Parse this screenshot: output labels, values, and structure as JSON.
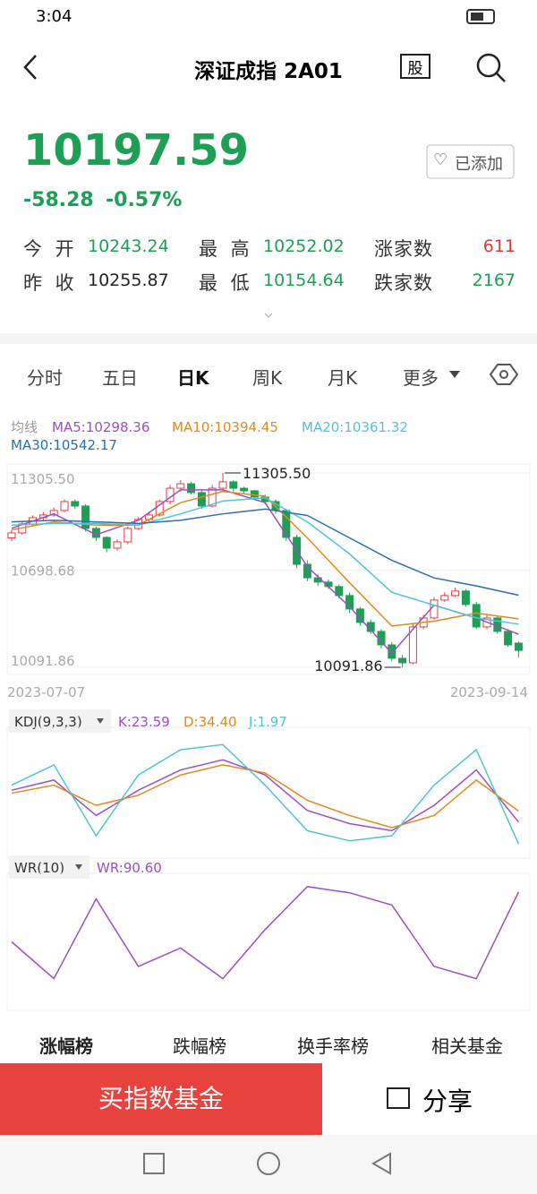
{
  "status": {
    "time": "3:04"
  },
  "nav": {
    "title": "深证成指 2A01",
    "badge": "股"
  },
  "quote": {
    "price": "10197.59",
    "change": "-58.28",
    "pct": "-0.57%",
    "watch": "已添加"
  },
  "stats": [
    {
      "label": "今 开",
      "value": "10243.24",
      "color": "#1f9e55"
    },
    {
      "label": "最 高",
      "value": "10252.02",
      "color": "#1f9e55"
    },
    {
      "label": "涨家数",
      "value": "611",
      "color": "#d43c3c"
    },
    {
      "label": "昨 收",
      "value": "10255.87",
      "color": "#222222"
    },
    {
      "label": "最 低",
      "value": "10154.64",
      "color": "#1f9e55"
    },
    {
      "label": "跌家数",
      "value": "2167",
      "color": "#1f9e55"
    }
  ],
  "tabs": [
    "分时",
    "五日",
    "日K",
    "周K",
    "月K",
    "更多"
  ],
  "chart_data": [
    {
      "type": "candlestick",
      "legend_title": "均线",
      "up_color": "#e33d3d",
      "down_color": "#1f9e55",
      "ylim": [
        10091.86,
        11305.5
      ],
      "yticks": [
        {
          "value": 11305.5,
          "label": "11305.50"
        },
        10698.68,
        {
          "value": 10091.86,
          "label": "10091.86"
        }
      ],
      "x_labels": [
        "2023-07-07",
        "2023-09-14"
      ],
      "annotations": [
        "11305.50",
        "10091.86"
      ],
      "candles": [
        [
          10900,
          10950,
          10880,
          10931
        ],
        [
          10931,
          11000,
          10920,
          10987
        ],
        [
          10987,
          11040,
          10970,
          11026
        ],
        [
          11026,
          11060,
          11010,
          11043
        ],
        [
          11043,
          11090,
          11030,
          11071
        ],
        [
          11071,
          11140,
          11060,
          11127
        ],
        [
          11127,
          11140,
          11080,
          11099
        ],
        [
          11099,
          11110,
          10940,
          10959
        ],
        [
          10959,
          10970,
          10880,
          10903
        ],
        [
          10903,
          10910,
          10810,
          10836
        ],
        [
          10836,
          10890,
          10820,
          10875
        ],
        [
          10875,
          10970,
          10860,
          10959
        ],
        [
          10959,
          11030,
          10950,
          11015
        ],
        [
          11015,
          11060,
          11000,
          11043
        ],
        [
          11043,
          11140,
          11030,
          11127
        ],
        [
          11127,
          11230,
          11110,
          11210
        ],
        [
          11210,
          11260,
          11190,
          11238
        ],
        [
          11238,
          11250,
          11170,
          11183
        ],
        [
          11183,
          11200,
          11080,
          11099
        ],
        [
          11099,
          11230,
          11090,
          11210
        ],
        [
          11210,
          11305.5,
          11200,
          11250
        ],
        [
          11250,
          11260,
          11190,
          11210
        ],
        [
          11210,
          11220,
          11180,
          11194
        ],
        [
          11194,
          11200,
          11140,
          11155
        ],
        [
          11155,
          11170,
          11110,
          11127
        ],
        [
          11127,
          11140,
          11050,
          11071
        ],
        [
          11071,
          11080,
          10880,
          10903
        ],
        [
          10903,
          10920,
          10710,
          10735
        ],
        [
          10735,
          10760,
          10630,
          10651
        ],
        [
          10651,
          10670,
          10600,
          10624
        ],
        [
          10624,
          10640,
          10580,
          10596
        ],
        [
          10596,
          10610,
          10520,
          10540
        ],
        [
          10540,
          10560,
          10430,
          10456
        ],
        [
          10456,
          10470,
          10350,
          10372
        ],
        [
          10372,
          10390,
          10300,
          10316
        ],
        [
          10316,
          10330,
          10210,
          10232
        ],
        [
          10232,
          10250,
          10130,
          10148
        ],
        [
          10148,
          10170,
          10091.86,
          10120
        ],
        [
          10120,
          10360,
          10110,
          10344
        ],
        [
          10344,
          10420,
          10330,
          10400
        ],
        [
          10400,
          10530,
          10390,
          10512
        ],
        [
          10512,
          10560,
          10500,
          10540
        ],
        [
          10540,
          10590,
          10530,
          10568
        ],
        [
          10568,
          10580,
          10470,
          10484
        ],
        [
          10484,
          10500,
          10330,
          10344
        ],
        [
          10344,
          10420,
          10330,
          10400
        ],
        [
          10400,
          10410,
          10300,
          10316
        ],
        [
          10316,
          10330,
          10220,
          10232
        ],
        [
          10243.24,
          10252.02,
          10154.64,
          10197.59
        ]
      ],
      "x": [
        0,
        4,
        8,
        12,
        16,
        20,
        24,
        28,
        32,
        36,
        40,
        44,
        48
      ],
      "series": [
        {
          "name": "MA5:10298.36",
          "color": "#9b4fc4",
          "values": [
            10960,
            11050,
            10920,
            11010,
            11200,
            11200,
            11120,
            10720,
            10470,
            10180,
            10480,
            10400,
            10298.36
          ]
        },
        {
          "name": "MA10:10394.45",
          "color": "#e08a1e",
          "values": [
            10950,
            11000,
            10980,
            10980,
            11120,
            11190,
            11160,
            10900,
            10620,
            10350,
            10380,
            10430,
            10394.45
          ]
        },
        {
          "name": "MA20:10361.32",
          "color": "#4fc3d9",
          "values": [
            10980,
            10990,
            10990,
            10980,
            11050,
            11130,
            11150,
            11000,
            10800,
            10560,
            10480,
            10400,
            10361.32
          ]
        },
        {
          "name": "MA30:10542.17",
          "color": "#2a6fb0",
          "values": [
            11000,
            11010,
            11000,
            10990,
            11010,
            11050,
            11080,
            11040,
            10900,
            10760,
            10650,
            10600,
            10542.17
          ]
        }
      ]
    },
    {
      "type": "line",
      "title": "KDJ(9,3,3)",
      "ylim": [
        -5,
        110
      ],
      "x": [
        0,
        4,
        8,
        12,
        16,
        20,
        24,
        28,
        32,
        36,
        40,
        44,
        48
      ],
      "series": [
        {
          "name": "K:23.59",
          "color": "#9b4fc4",
          "values": [
            55,
            65,
            30,
            55,
            75,
            85,
            70,
            35,
            22,
            15,
            40,
            75,
            23.59
          ]
        },
        {
          "name": "D:34.40",
          "color": "#e08a1e",
          "values": [
            52,
            60,
            40,
            50,
            70,
            80,
            72,
            45,
            30,
            18,
            30,
            65,
            34.4
          ]
        },
        {
          "name": "J:1.97",
          "color": "#4fc3d9",
          "values": [
            60,
            80,
            10,
            70,
            95,
            100,
            60,
            15,
            5,
            10,
            60,
            95,
            1.97
          ]
        }
      ]
    },
    {
      "type": "line",
      "title": "WR(10)",
      "ylim": [
        0,
        100
      ],
      "x": [
        0,
        4,
        8,
        12,
        16,
        20,
        24,
        28,
        32,
        36,
        40,
        44,
        48
      ],
      "series": [
        {
          "name": "WR:90.60",
          "color": "#9b4fc4",
          "values": [
            50,
            20,
            85,
            30,
            45,
            20,
            60,
            95,
            90,
            80,
            30,
            20,
            90.6
          ]
        }
      ]
    }
  ],
  "bottom_tabs": [
    "涨幅榜",
    "跌幅榜",
    "换手率榜",
    "相关基金"
  ],
  "buy": "买指数基金",
  "share": "分享"
}
